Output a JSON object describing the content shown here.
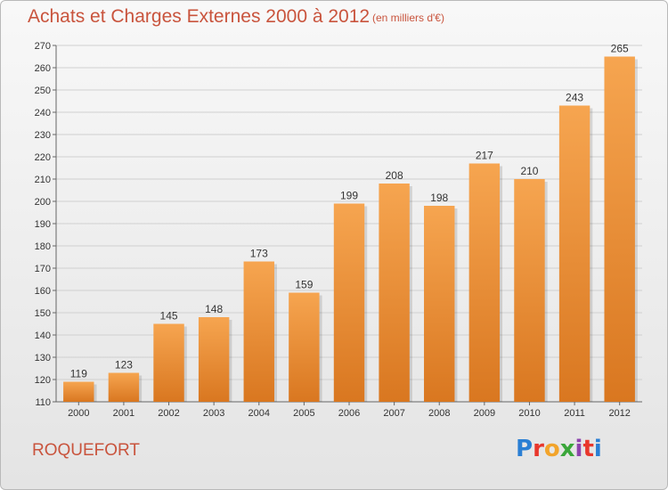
{
  "header": {
    "title": "Achats et Charges Externes 2000 à 2012",
    "subtitle": "(en milliers d'€)"
  },
  "footer": {
    "commune": "ROQUEFORT",
    "logo_text": "Proxiti",
    "logo_colors": [
      "#2a7fd4",
      "#e8372c",
      "#f2a42b",
      "#3aa63a",
      "#8e44ad",
      "#e8372c",
      "#2a7fd4"
    ]
  },
  "chart_data": {
    "type": "bar",
    "title": "Achats et Charges Externes 2000 à 2012",
    "subtitle": "(en milliers d'€)",
    "categories": [
      "2000",
      "2001",
      "2002",
      "2003",
      "2004",
      "2005",
      "2006",
      "2007",
      "2008",
      "2009",
      "2010",
      "2011",
      "2012"
    ],
    "values": [
      119,
      123,
      145,
      148,
      173,
      159,
      199,
      208,
      198,
      217,
      210,
      243,
      265
    ],
    "ylim": [
      110,
      270
    ],
    "yticks": [
      110,
      120,
      130,
      140,
      150,
      160,
      170,
      180,
      190,
      200,
      210,
      220,
      230,
      240,
      250,
      260,
      270
    ],
    "grid": true,
    "bar_color_top": "#f6a550",
    "bar_color_bottom": "#d97720"
  }
}
